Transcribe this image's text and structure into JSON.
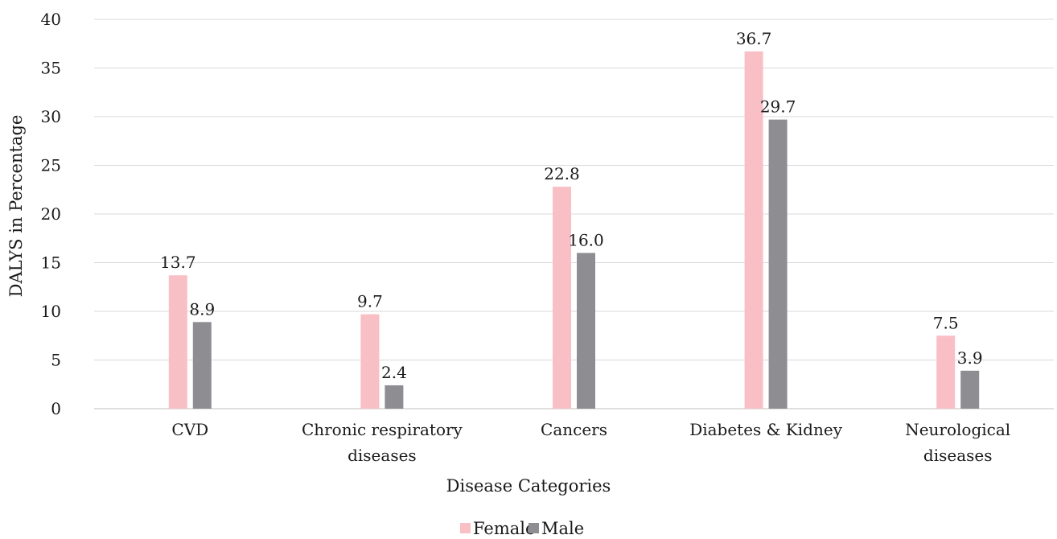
{
  "chart_data": {
    "type": "bar",
    "categories": [
      [
        "CVD"
      ],
      [
        "Chronic respiratory",
        "diseases"
      ],
      [
        "Cancers"
      ],
      [
        "Diabetes & Kidney"
      ],
      [
        "Neurological",
        "diseases"
      ]
    ],
    "series": [
      {
        "name": "Female",
        "color": "#f8bfc5",
        "values": [
          13.7,
          9.7,
          22.8,
          36.7,
          7.5
        ],
        "labels": [
          "13.7",
          "9.7",
          "22.8",
          "36.7",
          "7.5"
        ]
      },
      {
        "name": "Male",
        "color": "#8e8d92",
        "values": [
          8.9,
          2.4,
          16.0,
          29.7,
          3.9
        ],
        "labels": [
          "8.9",
          "2.4",
          "16.0",
          "29.7",
          "3.9"
        ]
      }
    ],
    "xlabel": "Disease Categories",
    "ylabel": "DALYS in Percentage",
    "ylim": [
      0,
      40
    ],
    "yticks": [
      0,
      5,
      10,
      15,
      20,
      25,
      30,
      35,
      40
    ],
    "grid": true,
    "legend_position": "bottom"
  }
}
